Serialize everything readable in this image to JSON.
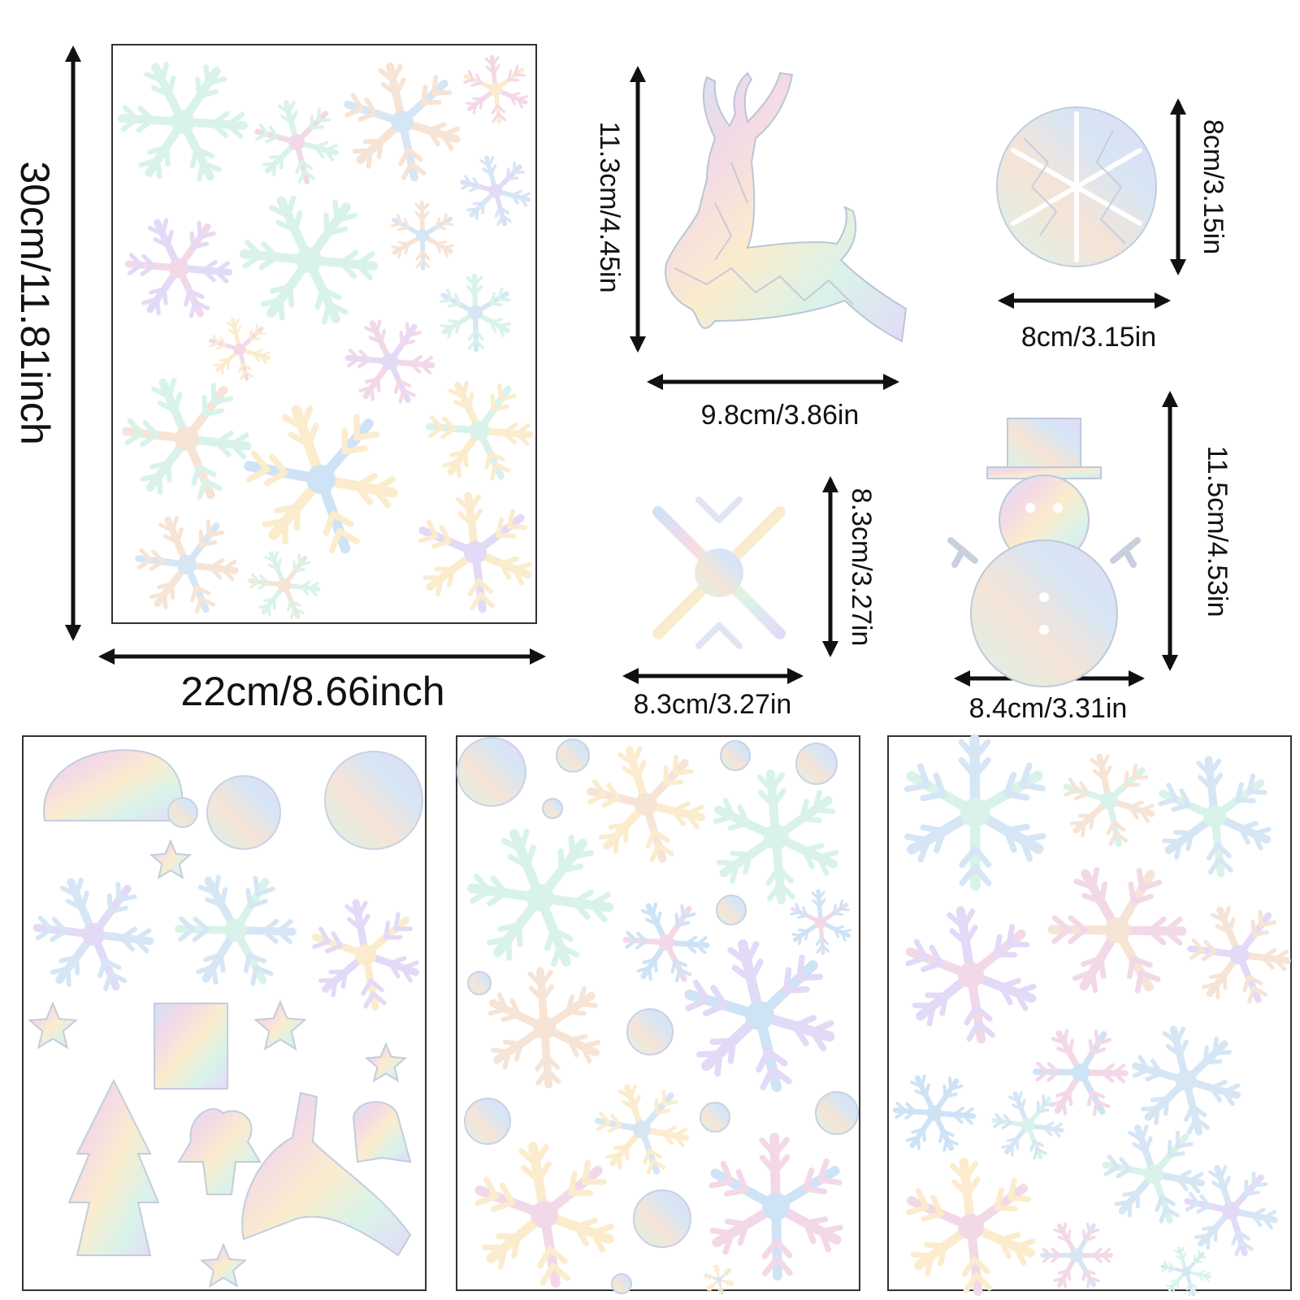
{
  "colors": {
    "ink": "#111111",
    "sheet_border": "#333333",
    "iridescent": [
      "#d6e6f5",
      "#f3d9e8",
      "#fbeccd",
      "#d9f3ea",
      "#e3daf7",
      "#cfe3f6",
      "#f6e4d6"
    ]
  },
  "dimensions": {
    "sheet_height": "30cm/11.81inch",
    "sheet_width": "22cm/8.66inch",
    "deer_height": "11.3cm/4.45in",
    "deer_width": "9.8cm/3.86in",
    "round_height": "8cm/3.15in",
    "round_width": "8cm/3.15in",
    "snowflake_height": "8.3cm/3.27in",
    "snowflake_width": "8.3cm/3.27in",
    "snowman_height": "11.5cm/4.53in",
    "snowman_width": "8.4cm/3.31in"
  },
  "stickers": {
    "featured": [
      "reindeer-sticker",
      "round-snowflake-sticker",
      "snowflake-sticker",
      "snowman-sticker"
    ],
    "sheets": [
      "snowflake-sheet",
      "christmas-mix-sheet",
      "snowflake-circle-sheet",
      "snowflake-sheet-2"
    ]
  }
}
